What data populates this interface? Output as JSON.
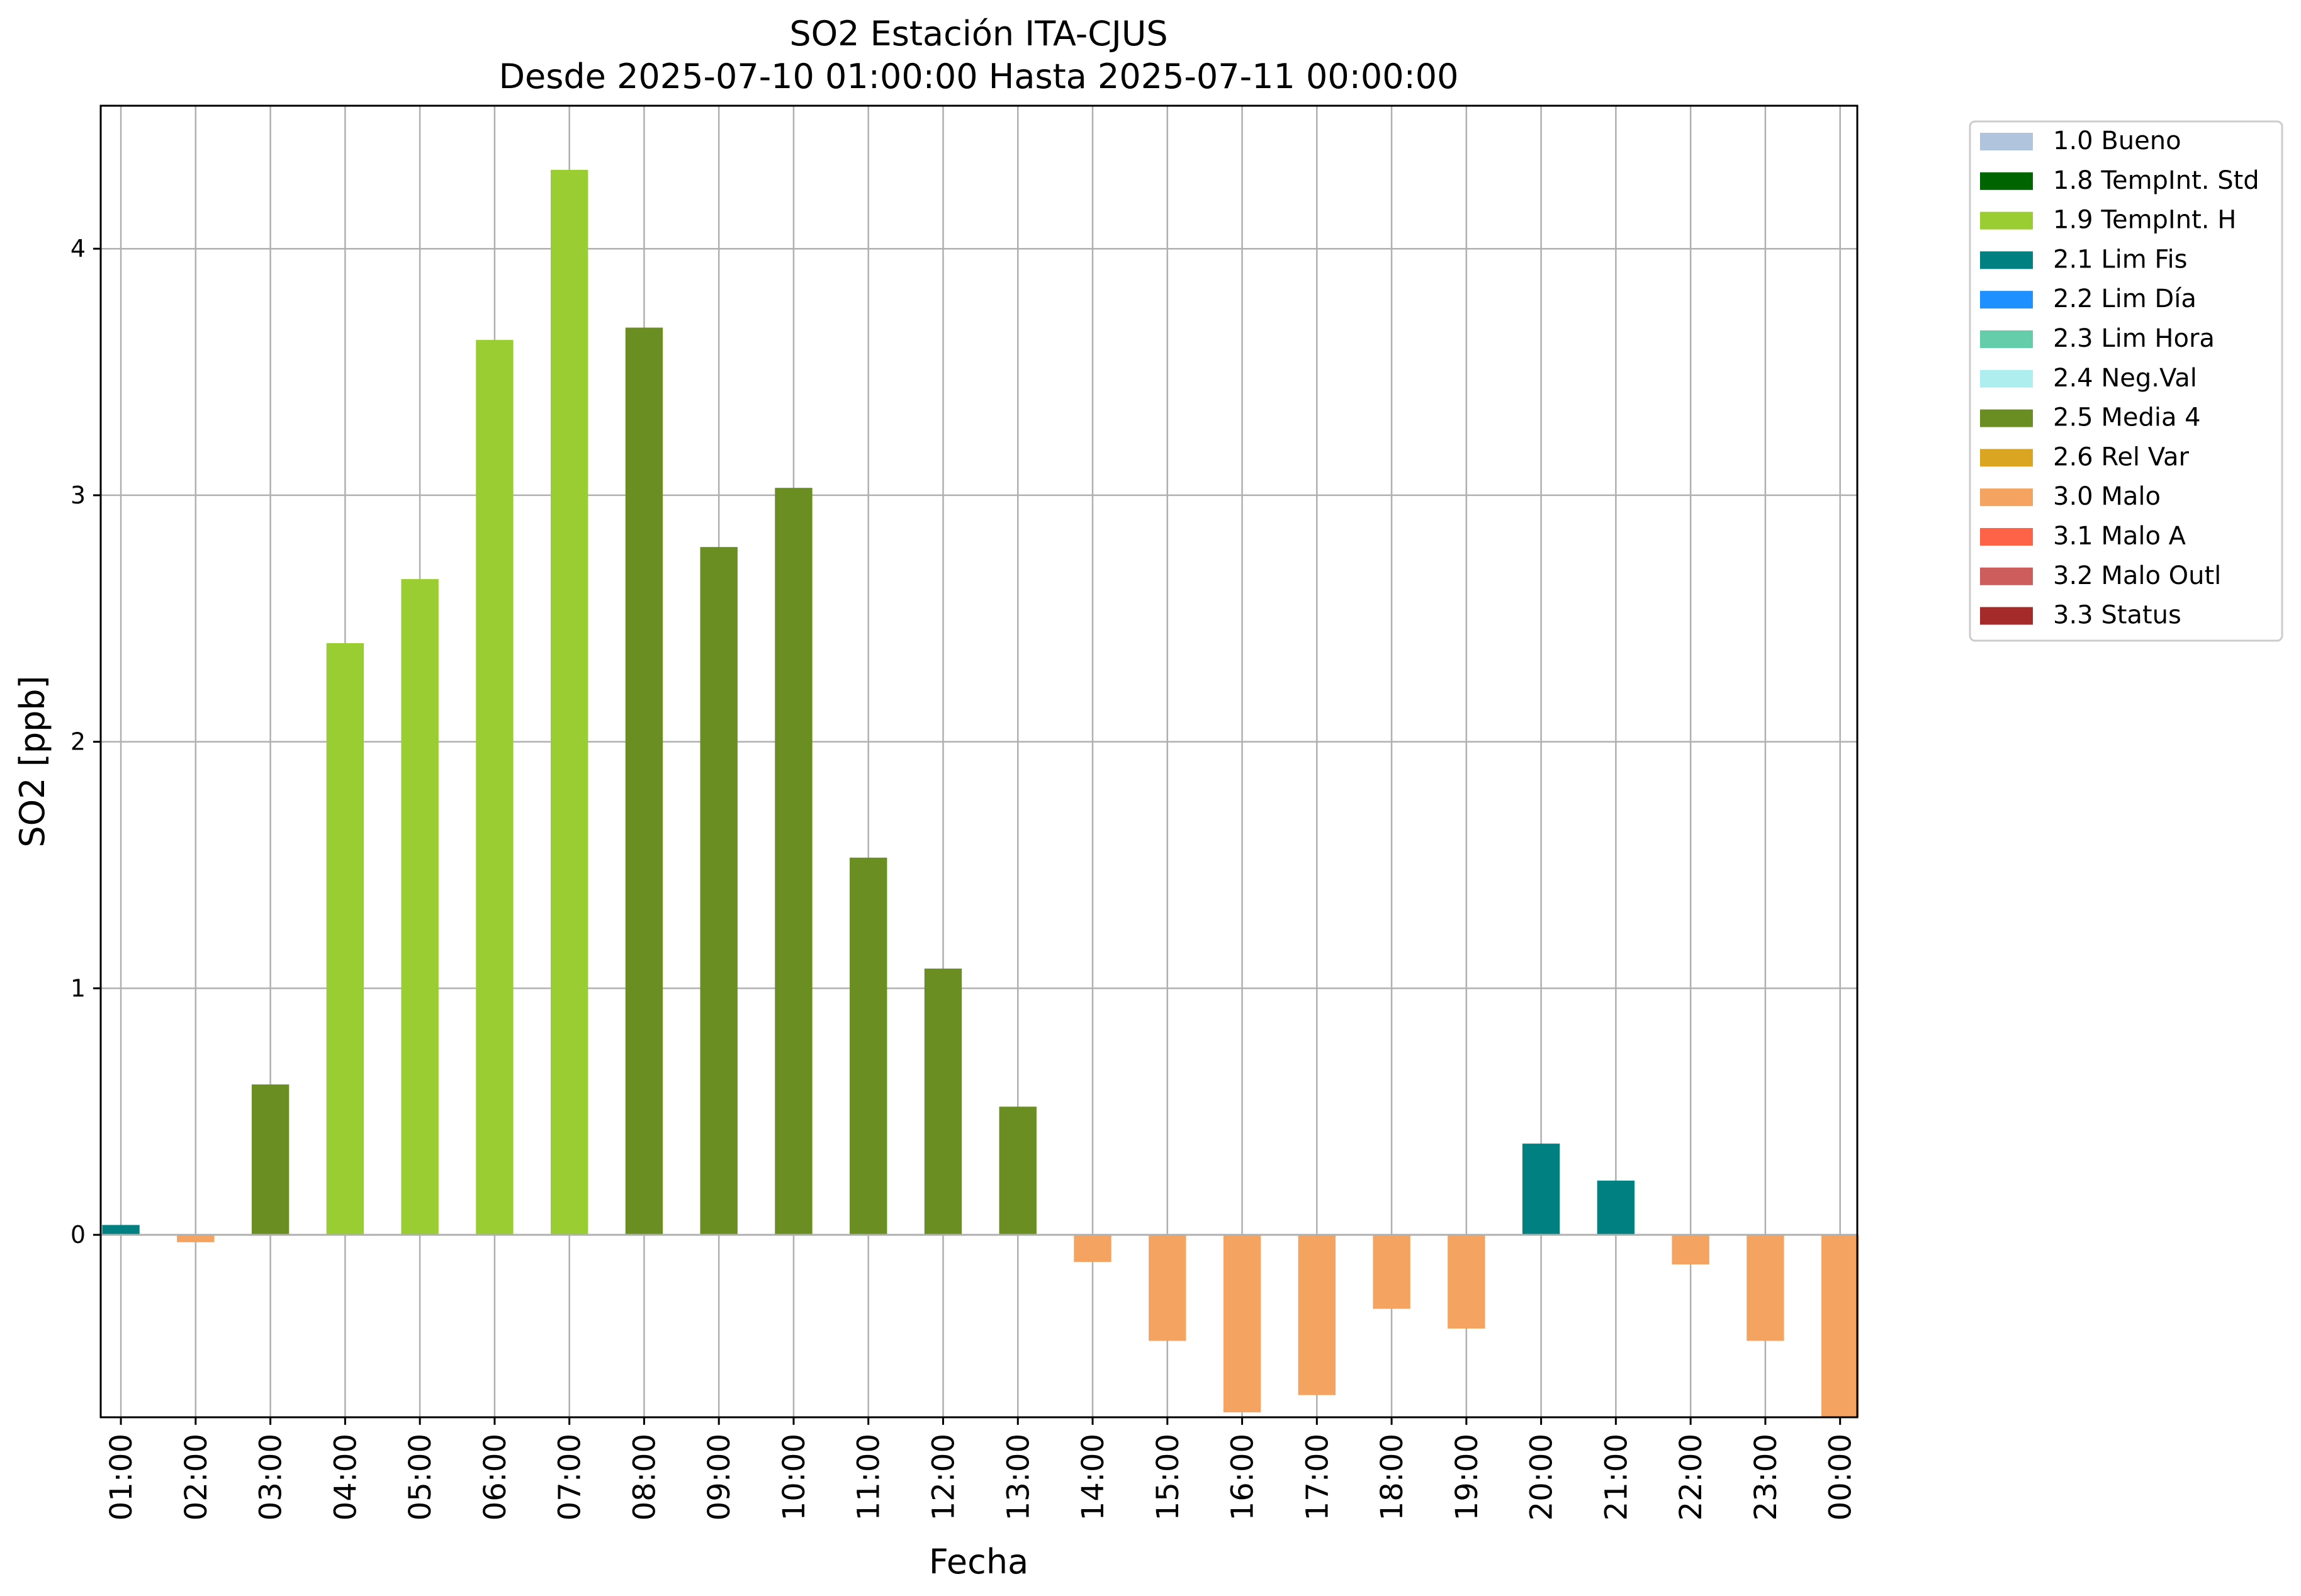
{
  "chart_data": {
    "type": "bar",
    "title": "SO2 Estación ITA-CJUS",
    "subtitle": "Desde 2025-07-10 01:00:00 Hasta 2025-07-11 00:00:00",
    "xlabel": "Fecha",
    "ylabel": "SO2 [ppb]",
    "ylim": [
      -0.74,
      4.58
    ],
    "yticks": [
      0,
      1,
      2,
      3,
      4
    ],
    "grid": true,
    "legend_position": "outside-top-right",
    "categories": [
      "01:00",
      "02:00",
      "03:00",
      "04:00",
      "05:00",
      "06:00",
      "07:00",
      "08:00",
      "09:00",
      "10:00",
      "11:00",
      "12:00",
      "13:00",
      "14:00",
      "15:00",
      "16:00",
      "17:00",
      "18:00",
      "19:00",
      "20:00",
      "21:00",
      "22:00",
      "23:00",
      "00:00"
    ],
    "values": [
      0.04,
      -0.03,
      0.61,
      2.4,
      2.66,
      3.63,
      4.32,
      3.68,
      2.79,
      3.03,
      1.53,
      1.08,
      0.52,
      -0.11,
      -0.43,
      -0.72,
      -0.65,
      -0.3,
      -0.38,
      0.37,
      0.22,
      -0.12,
      -0.43,
      -0.74
    ],
    "flags": [
      "2.1 Lim Fis",
      "3.0 Malo",
      "2.5 Media 4",
      "1.9 TempInt. H",
      "1.9 TempInt. H",
      "1.9 TempInt. H",
      "1.9 TempInt. H",
      "2.5 Media 4",
      "2.5 Media 4",
      "2.5 Media 4",
      "2.5 Media 4",
      "2.5 Media 4",
      "2.5 Media 4",
      "3.0 Malo",
      "3.0 Malo",
      "3.0 Malo",
      "3.0 Malo",
      "3.0 Malo",
      "3.0 Malo",
      "2.1 Lim Fis",
      "2.1 Lim Fis",
      "3.0 Malo",
      "3.0 Malo",
      "3.0 Malo"
    ],
    "legend": [
      {
        "label": "1.0 Bueno",
        "color": "#b0c4de"
      },
      {
        "label": "1.8 TempInt. Std",
        "color": "#006400"
      },
      {
        "label": "1.9 TempInt. H",
        "color": "#9acd32"
      },
      {
        "label": "2.1 Lim Fis",
        "color": "#008080"
      },
      {
        "label": "2.2 Lim Día",
        "color": "#1e90ff"
      },
      {
        "label": "2.3 Lim Hora",
        "color": "#66cdaa"
      },
      {
        "label": "2.4 Neg.Val",
        "color": "#afeeee"
      },
      {
        "label": "2.5 Media 4",
        "color": "#6b8e23"
      },
      {
        "label": "2.6 Rel Var",
        "color": "#daa520"
      },
      {
        "label": "3.0 Malo",
        "color": "#f4a460"
      },
      {
        "label": "3.1 Malo A",
        "color": "#ff6347"
      },
      {
        "label": "3.2 Malo Outl",
        "color": "#cd5c5c"
      },
      {
        "label": "3.3 Status",
        "color": "#a52a2a"
      }
    ]
  }
}
